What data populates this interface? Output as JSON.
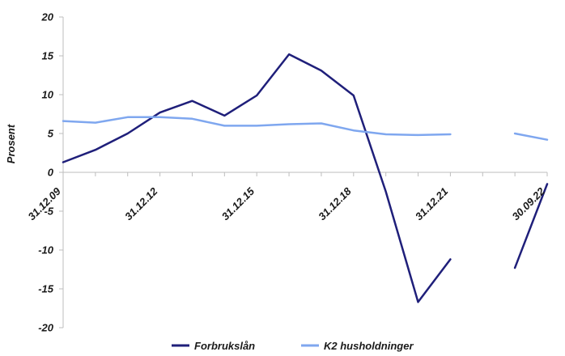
{
  "chart_data": {
    "type": "line",
    "ylabel": "Prosent",
    "ylim": [
      -20,
      20
    ],
    "yticks": [
      -20,
      -15,
      -10,
      -5,
      0,
      5,
      10,
      15,
      20
    ],
    "x": [
      "31.12.09",
      "31.12.10",
      "31.12.11",
      "31.12.12",
      "31.12.13",
      "31.12.14",
      "31.12.15",
      "31.12.16",
      "31.12.17",
      "31.12.18",
      "31.12.19",
      "31.12.20",
      "31.12.21",
      "31.03.22",
      "30.06.22",
      "30.09.22"
    ],
    "xtick_labels": [
      "31.12.09",
      "31.12.12",
      "31.12.15",
      "31.12.18",
      "31.12.21",
      "30.09.22"
    ],
    "series": [
      {
        "name": "Forbrukslån",
        "color": "#1f1f7a",
        "values": [
          1.3,
          2.9,
          5.0,
          7.7,
          9.2,
          7.3,
          9.9,
          15.2,
          13.1,
          9.9,
          -2.5,
          -16.7,
          -11.2,
          null,
          -12.3,
          -1.5
        ]
      },
      {
        "name": "K2 husholdninger",
        "color": "#7fa7ef",
        "values": [
          6.6,
          6.4,
          7.1,
          7.1,
          6.9,
          6.0,
          6.0,
          6.2,
          6.3,
          5.4,
          4.9,
          4.8,
          4.9,
          null,
          5.0,
          4.2
        ]
      }
    ],
    "grid": false,
    "legend": "bottom"
  }
}
